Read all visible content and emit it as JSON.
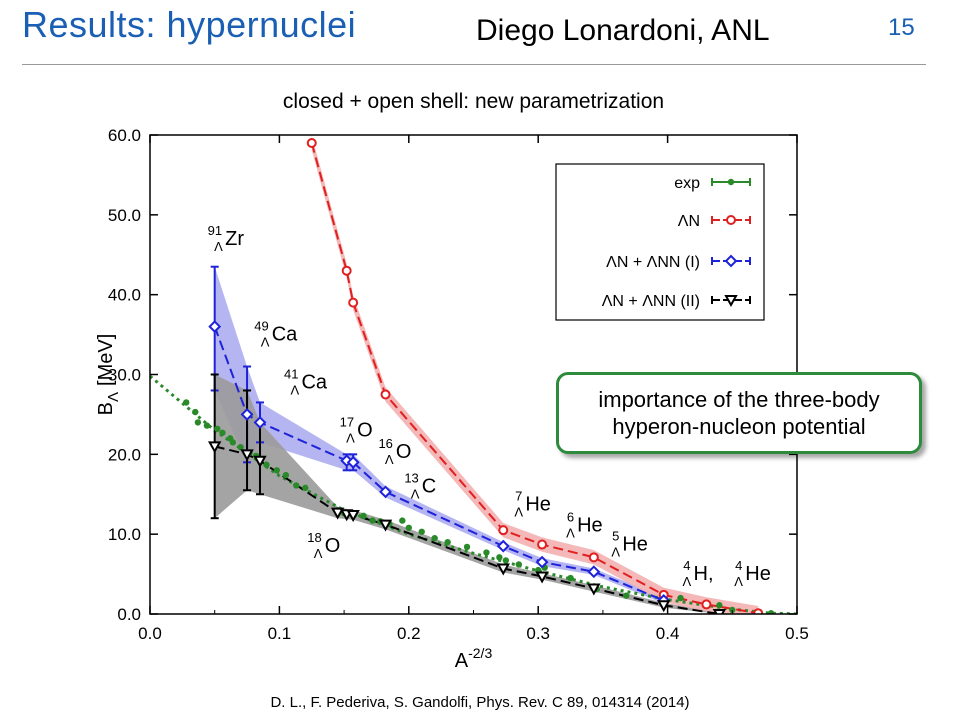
{
  "slide": {
    "title": "Results: hypernuclei",
    "author": "Diego Lonardoni, ANL",
    "page": "15",
    "citation": "D. L., F. Pederiva, S. Gandolfi, Phys. Rev. C 89, 014314 (2014)",
    "callout": [
      "importance of the three-body",
      "hyperon-nucleon potential"
    ]
  },
  "chart_data": {
    "type": "line",
    "title": "closed + open shell: new parametrization",
    "xlabel": "A",
    "xlabel_sup": "-2/3",
    "ylabel": "B",
    "ylabel_sub": "Λ",
    "ylabel_unit": "[MeV]",
    "xlim": [
      0.0,
      0.5
    ],
    "ylim": [
      0.0,
      60.0
    ],
    "x_ticks": [
      "0.0",
      "0.1",
      "0.2",
      "0.3",
      "0.4",
      "0.5"
    ],
    "y_ticks": [
      "0.0",
      "10.0",
      "20.0",
      "30.0",
      "40.0",
      "50.0",
      "60.0"
    ],
    "grid": false,
    "legend_position": "top-right",
    "colors": {
      "exp": "#2a8a2a",
      "LN": "#e02020",
      "LN_LNN_I": "#1e22d8",
      "LN_LNN_II": "#000000",
      "band_I": "#a8a8f0",
      "band_II": "#9a9a9a",
      "band_LN": "#f4b0b0"
    },
    "series": [
      {
        "name": "exp",
        "marker": "dot",
        "points": [
          [
            0.028,
            26.5
          ],
          [
            0.035,
            25.3
          ],
          [
            0.037,
            24.0
          ],
          [
            0.044,
            23.6
          ],
          [
            0.052,
            23.2
          ],
          [
            0.056,
            22.7
          ],
          [
            0.062,
            22.0
          ],
          [
            0.064,
            21.5
          ],
          [
            0.07,
            20.9
          ],
          [
            0.077,
            20.2
          ],
          [
            0.082,
            19.8
          ],
          [
            0.09,
            18.7
          ],
          [
            0.098,
            18.0
          ],
          [
            0.105,
            17.4
          ],
          [
            0.113,
            16.1
          ],
          [
            0.12,
            15.8
          ],
          [
            0.145,
            13.0
          ],
          [
            0.15,
            12.6
          ],
          [
            0.158,
            12.5
          ],
          [
            0.165,
            12.3
          ],
          [
            0.172,
            11.7
          ],
          [
            0.178,
            11.6
          ],
          [
            0.185,
            11.3
          ],
          [
            0.195,
            11.7
          ],
          [
            0.2,
            10.8
          ],
          [
            0.21,
            10.3
          ],
          [
            0.22,
            9.5
          ],
          [
            0.23,
            9.0
          ],
          [
            0.245,
            8.4
          ],
          [
            0.26,
            7.7
          ],
          [
            0.27,
            7.1
          ],
          [
            0.275,
            6.7
          ],
          [
            0.285,
            6.2
          ],
          [
            0.3,
            5.5
          ],
          [
            0.305,
            5.8
          ],
          [
            0.325,
            4.5
          ],
          [
            0.345,
            3.1
          ],
          [
            0.368,
            2.3
          ],
          [
            0.397,
            2.2
          ],
          [
            0.41,
            2.0
          ],
          [
            0.44,
            1.1
          ],
          [
            0.45,
            0.5
          ],
          [
            0.48,
            0.1
          ]
        ]
      },
      {
        "name": "ΛN",
        "marker": "circle",
        "points": [
          [
            0.125,
            59.0
          ],
          [
            0.152,
            43.0
          ],
          [
            0.157,
            39.0
          ],
          [
            0.182,
            27.5
          ],
          [
            0.273,
            10.5
          ],
          [
            0.303,
            8.7
          ],
          [
            0.343,
            7.1
          ],
          [
            0.397,
            2.4
          ],
          [
            0.43,
            1.2
          ],
          [
            0.47,
            0.1
          ]
        ]
      },
      {
        "name": "ΛN + ΛNN (I)",
        "marker": "diamond",
        "points": [
          [
            0.05,
            36.0
          ],
          [
            0.075,
            25.0
          ],
          [
            0.085,
            24.0
          ],
          [
            0.152,
            19.2
          ],
          [
            0.157,
            19.0
          ],
          [
            0.182,
            15.3
          ],
          [
            0.273,
            8.5
          ],
          [
            0.303,
            6.5
          ],
          [
            0.343,
            5.3
          ],
          [
            0.397,
            1.7
          ]
        ],
        "errors": [
          [
            0.05,
            28.0,
            43.5
          ],
          [
            0.075,
            19.0,
            31.0
          ],
          [
            0.085,
            21.5,
            26.5
          ],
          [
            0.152,
            18.0,
            20.0
          ],
          [
            0.157,
            18.0,
            20.0
          ]
        ]
      },
      {
        "name": "ΛN + ΛNN (II)",
        "marker": "triangle-down",
        "points": [
          [
            0.05,
            21.0
          ],
          [
            0.075,
            20.0
          ],
          [
            0.085,
            19.2
          ],
          [
            0.145,
            12.7
          ],
          [
            0.152,
            12.5
          ],
          [
            0.157,
            12.4
          ],
          [
            0.182,
            11.2
          ],
          [
            0.273,
            5.7
          ],
          [
            0.303,
            4.7
          ],
          [
            0.343,
            3.2
          ],
          [
            0.397,
            1.1
          ],
          [
            0.44,
            0.0
          ]
        ],
        "errors": [
          [
            0.05,
            12.0,
            30.0
          ],
          [
            0.075,
            15.5,
            28.0
          ],
          [
            0.085,
            15.0,
            24.0
          ]
        ]
      }
    ],
    "nuclei_labels": [
      {
        "sup": "91",
        "sym": "Zr",
        "x": 0.048,
        "y": 46.5
      },
      {
        "sup": "49",
        "sym": "Ca",
        "x": 0.084,
        "y": 34.5
      },
      {
        "sup": "41",
        "sym": "Ca",
        "x": 0.107,
        "y": 28.5
      },
      {
        "sup": "17",
        "sym": "O",
        "x": 0.15,
        "y": 22.5
      },
      {
        "sup": "16",
        "sym": "O",
        "x": 0.18,
        "y": 19.8
      },
      {
        "sup": "13",
        "sym": "C",
        "x": 0.2,
        "y": 15.5
      },
      {
        "sup": "7",
        "sym": "He",
        "x": 0.28,
        "y": 13.2
      },
      {
        "sup": "6",
        "sym": "He",
        "x": 0.32,
        "y": 10.6
      },
      {
        "sup": "5",
        "sym": "He",
        "x": 0.355,
        "y": 8.2
      },
      {
        "sup": "18",
        "sym": "O",
        "x": 0.125,
        "y": 8.0
      },
      {
        "sup": "4",
        "sym": "H,",
        "x": 0.41,
        "y": 4.5
      },
      {
        "sup": "4",
        "sym": "He",
        "x": 0.45,
        "y": 4.5
      }
    ]
  }
}
